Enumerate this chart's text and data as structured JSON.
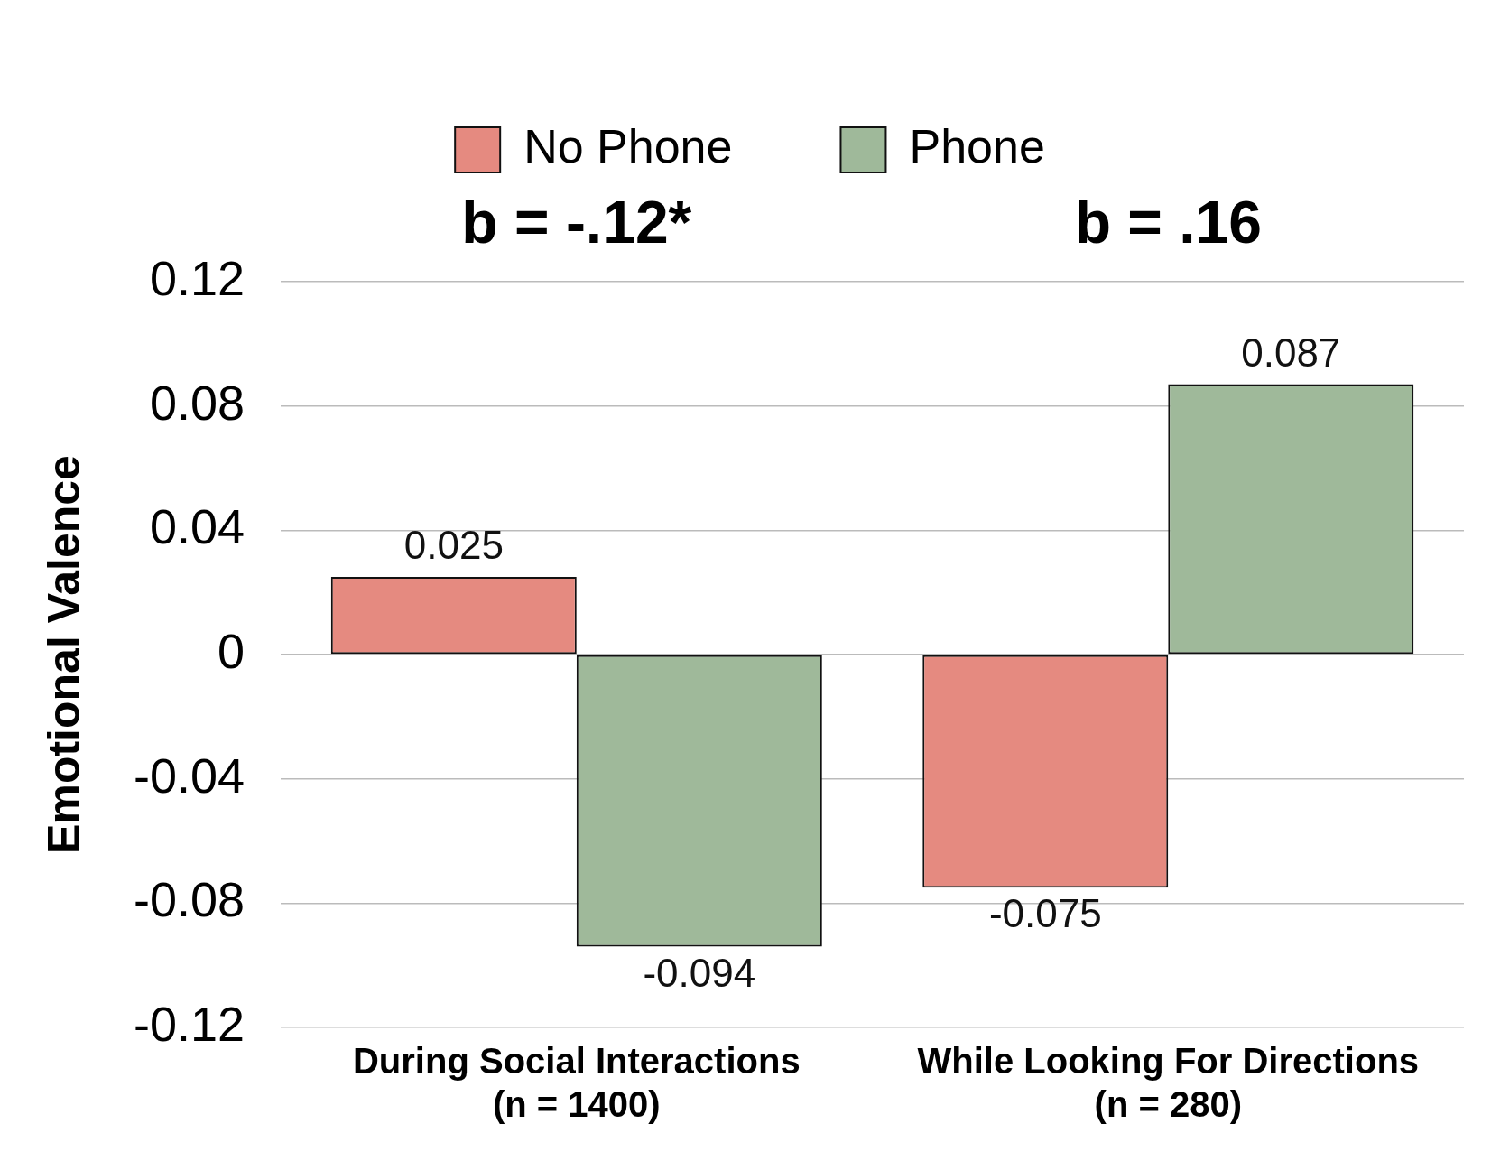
{
  "chart_data": {
    "type": "bar",
    "ylabel": "Emotional Valence",
    "categories": [
      "During Social Interactions\n(n = 1400)",
      "While Looking For Directions\n(n = 280)"
    ],
    "series": [
      {
        "name": "No Phone",
        "color": "#e58a80",
        "values": [
          0.025,
          -0.075
        ]
      },
      {
        "name": "Phone",
        "color": "#9fb99a",
        "values": [
          -0.094,
          0.087
        ]
      }
    ],
    "ylim": [
      -0.12,
      0.12
    ],
    "yticks": [
      -0.12,
      -0.08,
      -0.04,
      0,
      0.04,
      0.08,
      0.12
    ],
    "grid": "y",
    "legend": "top",
    "data_labels": true,
    "annotations": [
      "b = -.12*",
      "b = .16"
    ]
  }
}
